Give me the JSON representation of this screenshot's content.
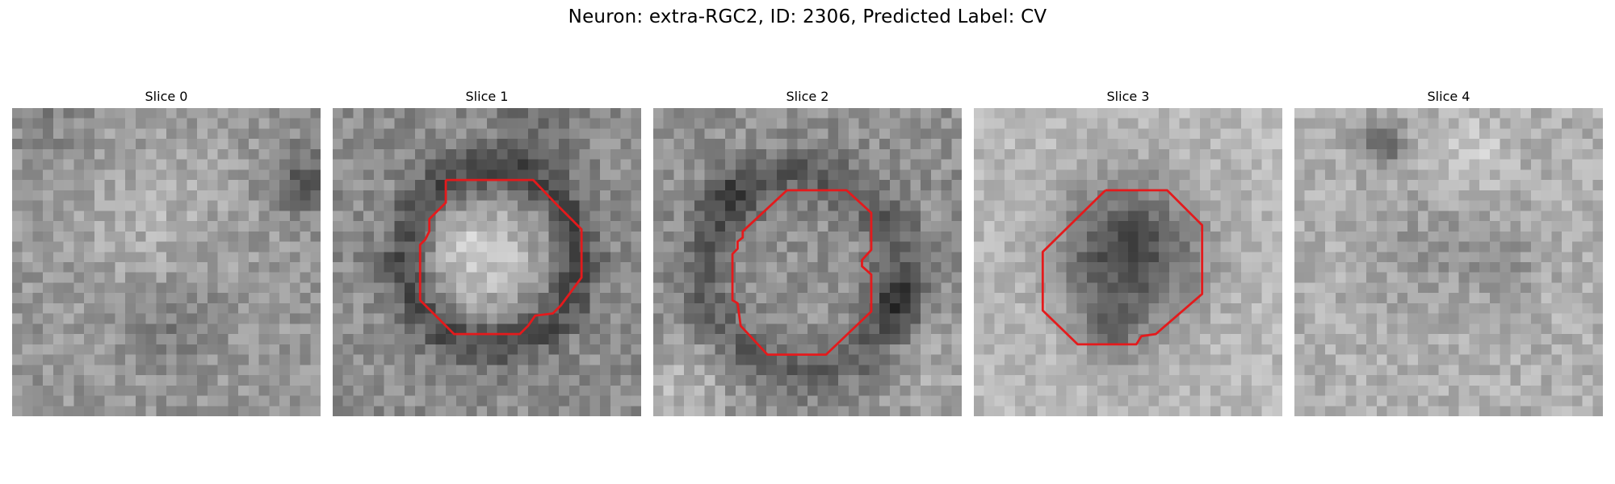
{
  "figure": {
    "title": "Neuron: extra-RGC2, ID: 2306, Predicted Label: CV",
    "contour_color": "#e41a1c"
  },
  "panels": [
    {
      "title": "Slice 0",
      "has_contour": false,
      "content": "diffuse gray noise, dark patch top-right"
    },
    {
      "title": "Slice 1",
      "has_contour": true,
      "content": "bright center ring with dark surround"
    },
    {
      "title": "Slice 2",
      "has_contour": true,
      "content": "mottled gray blob with dark rim"
    },
    {
      "title": "Slice 3",
      "has_contour": true,
      "content": "dark round blob on light background"
    },
    {
      "title": "Slice 4",
      "has_contour": false,
      "content": "light gray noise, dark spot top-left"
    }
  ]
}
